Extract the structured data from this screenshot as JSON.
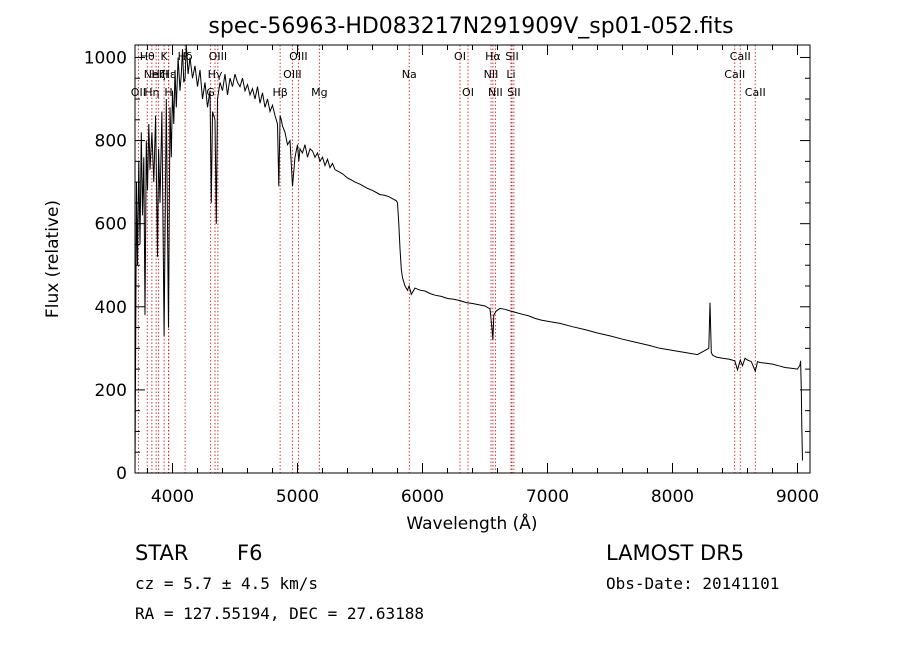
{
  "chart_data": {
    "type": "line",
    "title": "spec-56963-HD083217N291909V_sp01-052.fits",
    "xlabel": "Wavelength (Å)",
    "ylabel": "Flux (relative)",
    "xlim": [
      3700,
      9100
    ],
    "ylim": [
      0,
      1030
    ],
    "xticks": [
      4000,
      5000,
      6000,
      7000,
      8000,
      9000
    ],
    "yticks": [
      0,
      200,
      400,
      600,
      800,
      1000
    ],
    "xtick_labels": [
      "4000",
      "5000",
      "6000",
      "7000",
      "8000",
      "9000"
    ],
    "ytick_labels": [
      "0",
      "200",
      "400",
      "600",
      "800",
      "1000"
    ],
    "grid": false,
    "line_color": "#000000",
    "marker_color": "#cc2222",
    "series": [
      {
        "x": [
          3700,
          3705,
          3712,
          3720,
          3730,
          3740,
          3750,
          3760,
          3770,
          3780,
          3790,
          3800,
          3810,
          3820,
          3835,
          3850,
          3865,
          3880,
          3889,
          3900,
          3915,
          3933,
          3950,
          3968,
          3980,
          3990,
          4000,
          4010,
          4020,
          4030,
          4045,
          4060,
          4070,
          4080,
          4090,
          4101,
          4110,
          4125,
          4140,
          4160,
          4180,
          4200,
          4220,
          4240,
          4260,
          4280,
          4300,
          4310,
          4320,
          4340,
          4350,
          4360,
          4380,
          4400,
          4420,
          4440,
          4460,
          4480,
          4500,
          4520,
          4540,
          4560,
          4580,
          4600,
          4620,
          4640,
          4660,
          4680,
          4700,
          4720,
          4740,
          4760,
          4780,
          4800,
          4820,
          4840,
          4850,
          4861,
          4870,
          4880,
          4900,
          4920,
          4940,
          4960,
          4980,
          5000,
          5010,
          5020,
          5040,
          5060,
          5080,
          5100,
          5120,
          5140,
          5160,
          5180,
          5200,
          5220,
          5240,
          5260,
          5280,
          5300,
          5330,
          5360,
          5400,
          5430,
          5460,
          5500,
          5530,
          5560,
          5600,
          5630,
          5660,
          5700,
          5730,
          5760,
          5790,
          5800,
          5810,
          5820,
          5830,
          5840,
          5860,
          5880,
          5893,
          5910,
          5940,
          5980,
          6020,
          6060,
          6100,
          6150,
          6200,
          6250,
          6300,
          6350,
          6400,
          6450,
          6500,
          6540,
          6555,
          6563,
          6570,
          6590,
          6620,
          6660,
          6700,
          6750,
          6800,
          6850,
          6900,
          6950,
          7000,
          7100,
          7200,
          7300,
          7400,
          7500,
          7600,
          7700,
          7800,
          7900,
          8000,
          8100,
          8200,
          8290,
          8300,
          8310,
          8320,
          8330,
          8350,
          8400,
          8450,
          8498,
          8520,
          8542,
          8560,
          8580,
          8600,
          8630,
          8662,
          8680,
          8700,
          8750,
          8800,
          8850,
          8900,
          8950,
          9000,
          9020,
          9025,
          9030,
          9035,
          9040
        ],
        "y": [
          0,
          280,
          700,
          500,
          750,
          550,
          820,
          620,
          760,
          380,
          800,
          680,
          840,
          730,
          820,
          700,
          860,
          520,
          780,
          650,
          870,
          330,
          900,
          350,
          880,
          760,
          920,
          840,
          970,
          880,
          1000,
          920,
          960,
          1020,
          940,
          950,
          1030,
          960,
          1000,
          950,
          980,
          930,
          970,
          900,
          940,
          880,
          920,
          650,
          870,
          850,
          600,
          900,
          940,
          920,
          960,
          910,
          950,
          930,
          960,
          940,
          930,
          950,
          920,
          935,
          910,
          925,
          900,
          930,
          890,
          915,
          880,
          900,
          870,
          885,
          860,
          840,
          690,
          860,
          850,
          835,
          820,
          790,
          800,
          690,
          760,
          790,
          750,
          780,
          770,
          790,
          760,
          780,
          775,
          760,
          770,
          750,
          760,
          740,
          755,
          735,
          745,
          730,
          725,
          720,
          710,
          705,
          700,
          695,
          690,
          685,
          680,
          675,
          670,
          668,
          665,
          660,
          655,
          650,
          600,
          540,
          490,
          470,
          450,
          440,
          450,
          430,
          445,
          440,
          438,
          432,
          428,
          425,
          420,
          418,
          415,
          410,
          408,
          405,
          402,
          395,
          350,
          320,
          380,
          390,
          396,
          394,
          390,
          386,
          382,
          378,
          372,
          368,
          365,
          360,
          352,
          345,
          337,
          330,
          322,
          315,
          308,
          300,
          295,
          290,
          285,
          300,
          410,
          290,
          284,
          282,
          279,
          276,
          274,
          270,
          248,
          272,
          258,
          276,
          272,
          268,
          245,
          268,
          266,
          264,
          262,
          258,
          254,
          252,
          250,
          260,
          270,
          200,
          100,
          30
        ]
      }
    ],
    "line_markers": [
      {
        "x": 3727,
        "label": "OII",
        "row": 2
      },
      {
        "x": 3798,
        "label": "Hθ",
        "row": 0
      },
      {
        "x": 3835,
        "label": "Hη",
        "row": 2
      },
      {
        "x": 3869,
        "label": "NeIII",
        "row": 1
      },
      {
        "x": 3889,
        "label": "Hζ",
        "row": 1
      },
      {
        "x": 3933,
        "label": "K",
        "row": 0
      },
      {
        "x": 3968,
        "label": "H",
        "row": 2
      },
      {
        "x": 3970,
        "label": "Hε",
        "row": 1
      },
      {
        "x": 4101,
        "label": "Hδ",
        "row": 0
      },
      {
        "x": 4305,
        "label": "G",
        "row": 2
      },
      {
        "x": 4340,
        "label": "Hγ",
        "row": 1
      },
      {
        "x": 4363,
        "label": "OIII",
        "row": 0
      },
      {
        "x": 4861,
        "label": "Hβ",
        "row": 2
      },
      {
        "x": 4959,
        "label": "OIII",
        "row": 1
      },
      {
        "x": 5007,
        "label": "OIII",
        "row": 0
      },
      {
        "x": 5175,
        "label": "Mg",
        "row": 2
      },
      {
        "x": 5894,
        "label": "Na",
        "row": 1
      },
      {
        "x": 6300,
        "label": "OI",
        "row": 0
      },
      {
        "x": 6364,
        "label": "OI",
        "row": 2
      },
      {
        "x": 6548,
        "label": "NII",
        "row": 1
      },
      {
        "x": 6563,
        "label": "Hα",
        "row": 0
      },
      {
        "x": 6583,
        "label": "NII",
        "row": 2
      },
      {
        "x": 6708,
        "label": "Li",
        "row": 1
      },
      {
        "x": 6716,
        "label": "SII",
        "row": 0
      },
      {
        "x": 6731,
        "label": "SII",
        "row": 2
      },
      {
        "x": 8498,
        "label": "CaII",
        "row": 1
      },
      {
        "x": 8542,
        "label": "CaII",
        "row": 0
      },
      {
        "x": 8662,
        "label": "CaII",
        "row": 2
      }
    ]
  },
  "info": {
    "object_class": "STAR",
    "subclass": "F6",
    "survey": "LAMOST DR5",
    "redshift": "cz = 5.7 ± 4.5 km/s",
    "obs_date": "Obs-Date: 20141101",
    "coords": "RA = 127.55194, DEC =  27.63188"
  }
}
